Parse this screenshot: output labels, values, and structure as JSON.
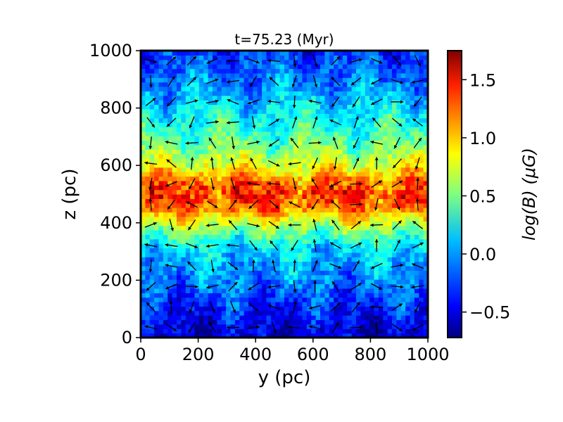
{
  "chart_data": {
    "type": "heatmap",
    "title": "t=75.23 (Myr)",
    "xlabel": "y (pc)",
    "ylabel": "z (pc)",
    "xlim": [
      0,
      1000
    ],
    "ylim": [
      0,
      1000
    ],
    "xticks": [
      "0",
      "200",
      "400",
      "600",
      "800",
      "1000"
    ],
    "xtick_values": [
      0,
      200,
      400,
      600,
      800,
      1000
    ],
    "yticks": [
      "0",
      "200",
      "400",
      "600",
      "800",
      "1000"
    ],
    "ytick_values": [
      0,
      200,
      400,
      600,
      800,
      1000
    ],
    "colormap": "jet",
    "colorbar": {
      "label": "log(B) (μG)",
      "range": [
        -0.72,
        1.75
      ],
      "ticks": [
        "−0.5",
        "0.0",
        "0.5",
        "1.0",
        "1.5"
      ],
      "tick_values": [
        -0.5,
        0.0,
        0.5,
        1.0,
        1.5
      ]
    },
    "field_profile": {
      "description_values_z": [
        0,
        100,
        200,
        300,
        350,
        400,
        450,
        500,
        550,
        600,
        650,
        700,
        800,
        900,
        1000
      ],
      "log_B": [
        -0.55,
        -0.35,
        -0.1,
        0.1,
        0.35,
        0.7,
        1.1,
        1.2,
        1.05,
        0.75,
        0.55,
        0.4,
        0.15,
        -0.1,
        -0.3
      ]
    },
    "vectors": "magnetic field direction arrows on a regular grid"
  }
}
